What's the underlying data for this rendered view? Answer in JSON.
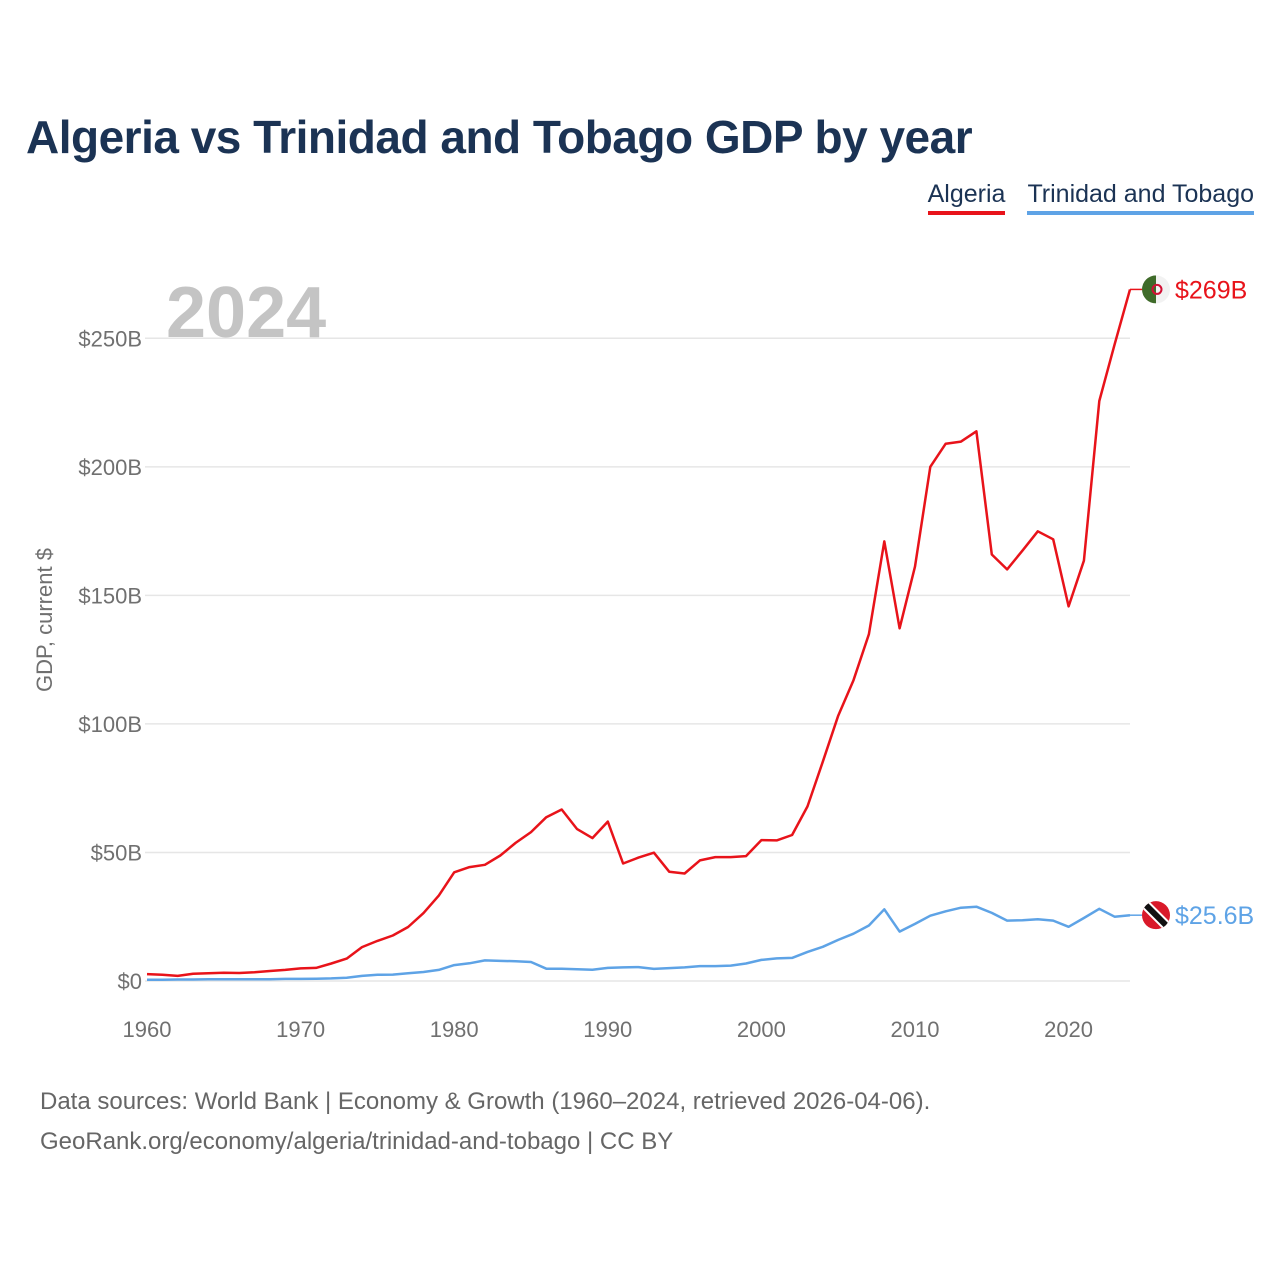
{
  "title": "Algeria vs Trinidad and Tobago GDP by year",
  "legend": [
    "Algeria",
    "Trinidad and Tobago"
  ],
  "footer": {
    "line1": "Data sources: World Bank | Economy & Growth (1960–2024, retrieved 2026-04-06).",
    "line2": "GeoRank.org/economy/algeria/trinidad-and-tobago | CC BY"
  },
  "colors": {
    "algeria": "#e8131a",
    "trinidad": "#5ea3e6",
    "title": "#1b3354",
    "year": "#c4c4c4",
    "grid": "#e6e6e6"
  },
  "chart_data": {
    "type": "line",
    "title": "Algeria vs Trinidad and Tobago GDP by year",
    "year_label": "2024",
    "ylabel": "GDP, current $",
    "xlabel": "",
    "xlim": [
      1960,
      2024
    ],
    "ylim": [
      0,
      260
    ],
    "x_ticks": [
      1960,
      1970,
      1980,
      1990,
      2000,
      2010,
      2020
    ],
    "y_ticks": [
      0,
      50,
      100,
      150,
      200,
      250
    ],
    "y_tick_labels": [
      "$0",
      "$50B",
      "$100B",
      "$150B",
      "$200B",
      "$250B"
    ],
    "unit": "billion USD",
    "x": [
      1960,
      1961,
      1962,
      1963,
      1964,
      1965,
      1966,
      1967,
      1968,
      1969,
      1970,
      1971,
      1972,
      1973,
      1974,
      1975,
      1976,
      1977,
      1978,
      1979,
      1980,
      1981,
      1982,
      1983,
      1984,
      1985,
      1986,
      1987,
      1988,
      1989,
      1990,
      1991,
      1992,
      1993,
      1994,
      1995,
      1996,
      1997,
      1998,
      1999,
      2000,
      2001,
      2002,
      2003,
      2004,
      2005,
      2006,
      2007,
      2008,
      2009,
      2010,
      2011,
      2012,
      2013,
      2014,
      2015,
      2016,
      2017,
      2018,
      2019,
      2020,
      2021,
      2022,
      2023,
      2024
    ],
    "series": [
      {
        "name": "Algeria",
        "color": "#e8131a",
        "end_label": "$269B",
        "values": [
          2.7,
          2.4,
          2.0,
          2.8,
          3.0,
          3.2,
          3.1,
          3.4,
          3.9,
          4.3,
          4.9,
          5.1,
          6.8,
          8.7,
          13.2,
          15.6,
          17.7,
          21.0,
          26.4,
          33.2,
          42.3,
          44.3,
          45.2,
          48.8,
          53.7,
          57.9,
          63.7,
          66.7,
          59.1,
          55.6,
          62.0,
          45.7,
          48.0,
          49.9,
          42.5,
          41.8,
          46.9,
          48.2,
          48.2,
          48.6,
          54.8,
          54.7,
          56.8,
          67.9,
          85.3,
          103.2,
          117.0,
          134.9,
          171.0,
          137.2,
          161.2,
          200.0,
          209.0,
          209.8,
          213.8,
          165.9,
          160.1,
          167.4,
          174.9,
          171.8,
          145.7,
          163.5,
          225.6,
          247.6,
          269.0
        ]
      },
      {
        "name": "Trinidad and Tobago",
        "color": "#5ea3e6",
        "end_label": "$25.6B",
        "values": [
          0.5,
          0.5,
          0.6,
          0.6,
          0.7,
          0.7,
          0.7,
          0.7,
          0.7,
          0.8,
          0.8,
          0.9,
          1.0,
          1.3,
          2.0,
          2.4,
          2.5,
          3.0,
          3.5,
          4.3,
          6.2,
          6.9,
          8.0,
          7.8,
          7.7,
          7.4,
          4.8,
          4.8,
          4.6,
          4.4,
          5.1,
          5.3,
          5.4,
          4.7,
          5.0,
          5.3,
          5.8,
          5.8,
          6.0,
          6.8,
          8.2,
          8.8,
          9.0,
          11.3,
          13.3,
          16.0,
          18.4,
          21.6,
          27.9,
          19.2,
          22.2,
          25.4,
          27.1,
          28.5,
          28.9,
          26.5,
          23.5,
          23.6,
          24.0,
          23.5,
          21.1,
          24.5,
          28.1,
          25.0,
          25.6
        ]
      }
    ]
  }
}
